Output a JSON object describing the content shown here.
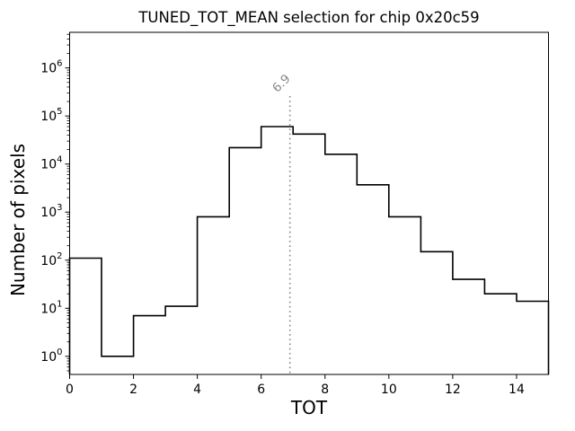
{
  "figure": {
    "background": "#ffffff"
  },
  "chart_data": {
    "type": "bar",
    "subtype": "step-histogram",
    "title": "TUNED_TOT_MEAN selection for chip 0x20c59",
    "xlabel": "TOT",
    "ylabel": "Number of pixels",
    "yscale": "log",
    "grid": false,
    "xlim": [
      0,
      15
    ],
    "ylim": [
      0.42,
      5500000
    ],
    "xticks": [
      0,
      2,
      4,
      6,
      8,
      10,
      12,
      14
    ],
    "ytick_exponents": [
      0,
      1,
      2,
      3,
      4,
      5,
      6
    ],
    "bin_edges": [
      0,
      1,
      2,
      3,
      4,
      5,
      6,
      7,
      8,
      9,
      10,
      11,
      12,
      13,
      14,
      15
    ],
    "counts": [
      110,
      1,
      7,
      11,
      800,
      22000,
      60000,
      42000,
      16000,
      3700,
      800,
      150,
      40,
      20,
      14
    ],
    "line_color": "#000000",
    "axis_color": "#000000",
    "vline": {
      "x": 6.9,
      "label": "6.9",
      "color": "#888888",
      "style": "dotted",
      "ymax_value": 260000
    }
  }
}
